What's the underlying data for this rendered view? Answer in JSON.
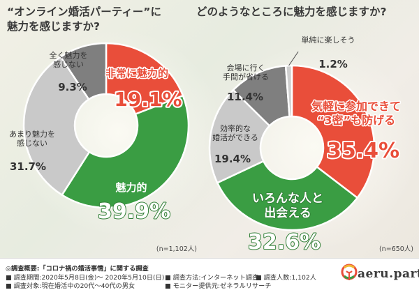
{
  "colors": {
    "red": "#e94e3a",
    "green": "#3a9d43",
    "gray_dark": "#7f7f7f",
    "gray_light": "#c9c9c9",
    "ink": "#333333"
  },
  "chart_data": [
    {
      "type": "pie",
      "title": "“オンライン婚活パーティー”に\n魅力を感じますか?",
      "note": "(n=1,102人)",
      "slices": [
        {
          "label": "非常に魅力的",
          "value": 19.1,
          "value_text": "19.1%",
          "color": "#e94e3a"
        },
        {
          "label": "魅力的",
          "value": 39.9,
          "value_text": "39.9%",
          "color": "#3a9d43"
        },
        {
          "label": "あまり魅力を\n感じない",
          "value": 31.7,
          "value_text": "31.7%",
          "color": "#c9c9c9"
        },
        {
          "label": "全く魅力を\n感じない",
          "value": 9.3,
          "value_text": "9.3%",
          "color": "#7f7f7f"
        }
      ]
    },
    {
      "type": "pie",
      "title": "どのようなところに魅力を感じますか?",
      "note": "(n=650人)",
      "slices": [
        {
          "label": "気軽に参加できて\n“3密”も防げる",
          "value": 35.4,
          "value_text": "35.4%",
          "color": "#e94e3a"
        },
        {
          "label": "いろんな人と\n出会える",
          "value": 32.6,
          "value_text": "32.6%",
          "color": "#3a9d43"
        },
        {
          "label": "効率的な\n婚活ができる",
          "value": 19.4,
          "value_text": "19.4%",
          "color": "#c9c9c9"
        },
        {
          "label": "会場に行く\n手間が省ける",
          "value": 11.4,
          "value_text": "11.4%",
          "color": "#7f7f7f"
        },
        {
          "label": "単純に楽しそう",
          "value": 1.2,
          "value_text": "1.2%",
          "color": "#cfcfcf"
        }
      ]
    }
  ],
  "footer": {
    "heading": "◎調査概要:「コロナ禍の婚活事情」に関する調査",
    "period": "■ 調査期間:2020年5月8日(金)〜 2020年5月10日(日)",
    "method": "■ 調査方法:インターネット調査",
    "count": "■ 調査人数:1,102人",
    "target": "■ 調査対象:現在婚活中の20代〜40代の男女",
    "provider": "■ モニター提供元:ゼネラルリサーチ",
    "logo_text": "aeru.party"
  }
}
